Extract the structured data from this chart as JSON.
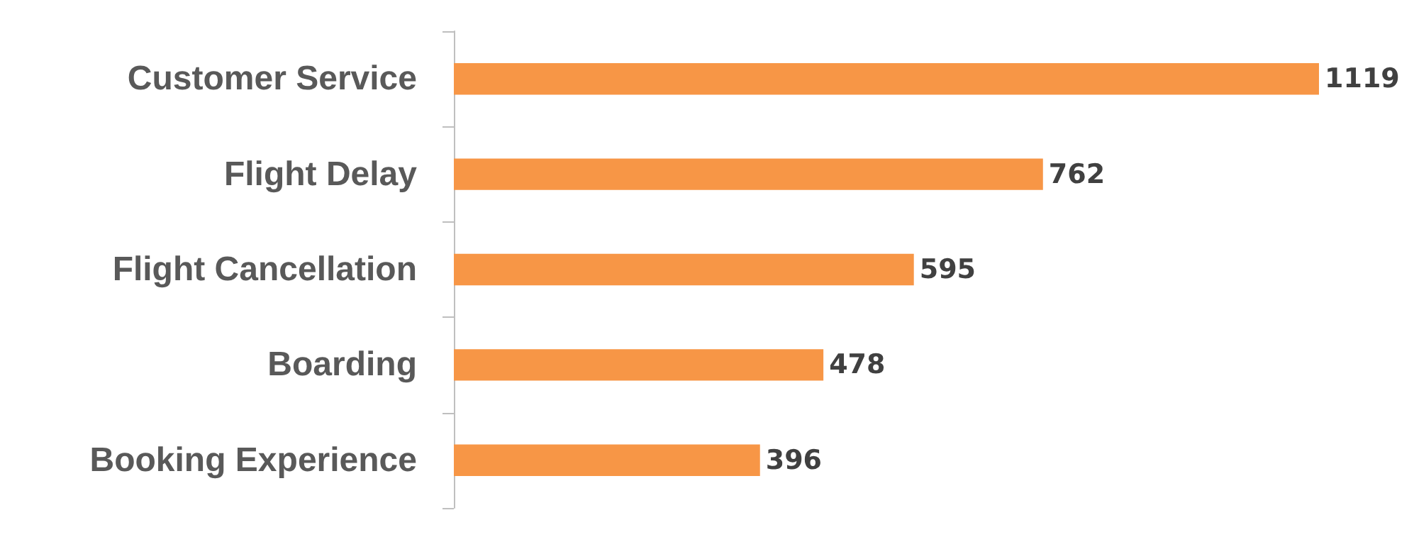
{
  "chart_data": {
    "type": "bar",
    "orientation": "horizontal",
    "categories": [
      "Customer Service",
      "Flight Delay",
      "Flight Cancellation",
      "Boarding",
      "Booking Experience"
    ],
    "values": [
      1119,
      762,
      595,
      478,
      396
    ],
    "color": "#f79646",
    "data_labels": true
  }
}
